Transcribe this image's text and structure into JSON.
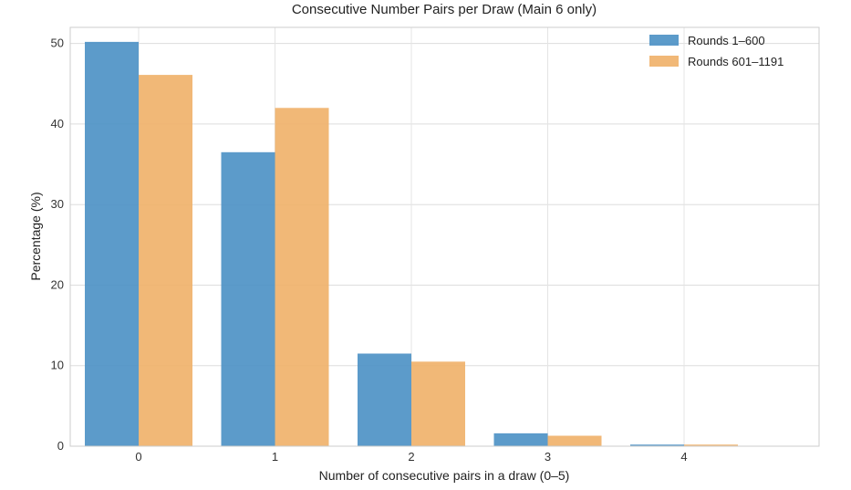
{
  "chart_data": {
    "type": "bar",
    "title": "Consecutive Number Pairs per Draw (Main 6 only)",
    "xlabel": "Number of consecutive pairs in a draw (0–5)",
    "ylabel": "Percentage (%)",
    "categories": [
      "0",
      "1",
      "2",
      "3",
      "4"
    ],
    "series": [
      {
        "name": "Rounds 1–600",
        "color": "#4a90c4",
        "values": [
          50.2,
          36.5,
          11.5,
          1.6,
          0.2
        ]
      },
      {
        "name": "Rounds 601–1191",
        "color": "#f0b068",
        "values": [
          46.1,
          42.0,
          10.5,
          1.3,
          0.2
        ]
      }
    ],
    "ylim": [
      0,
      52
    ],
    "yticks": [
      0,
      10,
      20,
      30,
      40,
      50
    ],
    "grid": true,
    "legend_position": "top-right"
  }
}
